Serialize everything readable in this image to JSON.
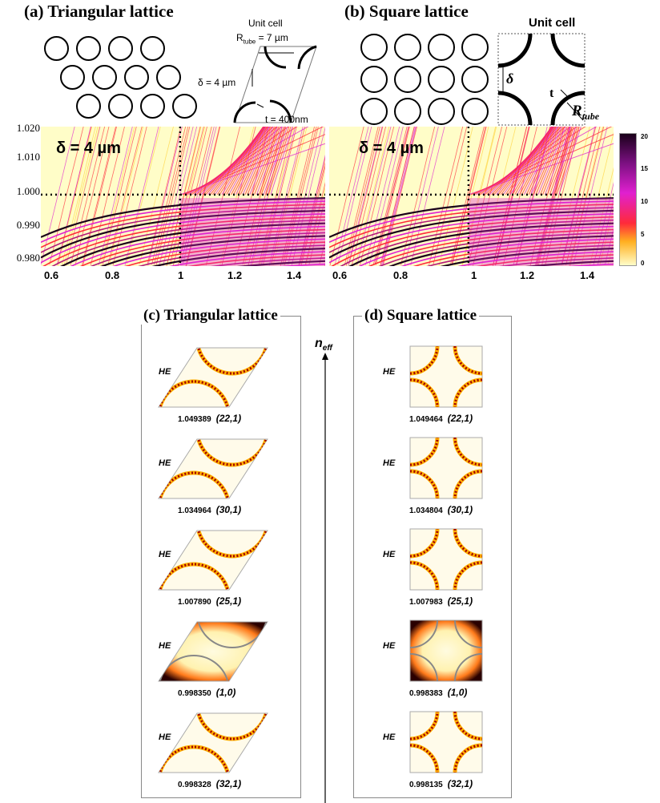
{
  "panel_a": {
    "title": "(a) Triangular lattice",
    "unit_cell_label": "Unit cell",
    "rtube_label": "R",
    "rtube_sub": "tube",
    "rtube_value": " = 7 µm",
    "delta_label": "δ = 4 µm",
    "t_label": "t = 400nm",
    "plot_delta": "δ = 4 µm"
  },
  "panel_b": {
    "title": "(b) Square lattice",
    "unit_cell_label": "Unit cell",
    "delta_symbol": "δ",
    "t_symbol": "t",
    "rtube_label": "R",
    "rtube_sub": "tube",
    "plot_delta": "δ = 4 µm"
  },
  "chart_data": [
    {
      "type": "heatmap",
      "title": "",
      "xlabel": "",
      "ylabel": "",
      "xlim": [
        0.52,
        1.5
      ],
      "ylim": [
        0.979,
        1.02
      ],
      "xticks": [
        "0.6",
        "0.8",
        "1",
        "1.2",
        "1.4"
      ],
      "yticks": [
        "1.020",
        "1.010",
        "1.000",
        "0.990",
        "0.980"
      ],
      "annotation": "δ = 4 µm",
      "dotted_lines": {
        "x": 1,
        "y": 1.0
      }
    },
    {
      "type": "heatmap",
      "title": "",
      "xlabel": "",
      "ylabel": "",
      "xlim": [
        0.52,
        1.5
      ],
      "ylim": [
        0.979,
        1.02
      ],
      "xticks": [
        "0.6",
        "0.8",
        "1",
        "1.2",
        "1.4"
      ],
      "yticks": [],
      "annotation": "δ = 4 µm",
      "dotted_lines": {
        "x": 1,
        "y": 1.0
      },
      "colorbar": {
        "min": 0,
        "max": 20,
        "ticks": [
          "20",
          "15",
          "10",
          "5",
          "0"
        ]
      }
    }
  ],
  "colors": {
    "low": "#fffdc8",
    "mid_low": "#ffd23a",
    "mid": "#ff2a3a",
    "high": "#e020d0",
    "top": "#1a001a"
  },
  "panel_c": {
    "title": "(c) Triangular lattice",
    "modes": [
      {
        "label": "HE",
        "value": "1.049389",
        "id": "(22,1)",
        "kind": "ring"
      },
      {
        "label": "HE",
        "value": "1.034964",
        "id": "(30,1)",
        "kind": "ring"
      },
      {
        "label": "HE",
        "value": "1.007890",
        "id": "(25,1)",
        "kind": "ring"
      },
      {
        "label": "HE",
        "value": "0.998350",
        "id": "(1,0)",
        "kind": "core"
      },
      {
        "label": "HE",
        "value": "0.998328",
        "id": "(32,1)",
        "kind": "ring"
      }
    ]
  },
  "panel_d": {
    "title": "(d) Square lattice",
    "modes": [
      {
        "label": "HE",
        "value": "1.049464",
        "id": "(22,1)",
        "kind": "ring"
      },
      {
        "label": "HE",
        "value": "1.034804",
        "id": "(30,1)",
        "kind": "ring"
      },
      {
        "label": "HE",
        "value": "1.007983",
        "id": "(25,1)",
        "kind": "ring"
      },
      {
        "label": "HE",
        "value": "0.998383",
        "id": "(1,0)",
        "kind": "core"
      },
      {
        "label": "HE",
        "value": "0.998135",
        "id": "(32,1)",
        "kind": "ring"
      }
    ]
  },
  "axis_neff": {
    "label": "n",
    "sub": "eff"
  }
}
